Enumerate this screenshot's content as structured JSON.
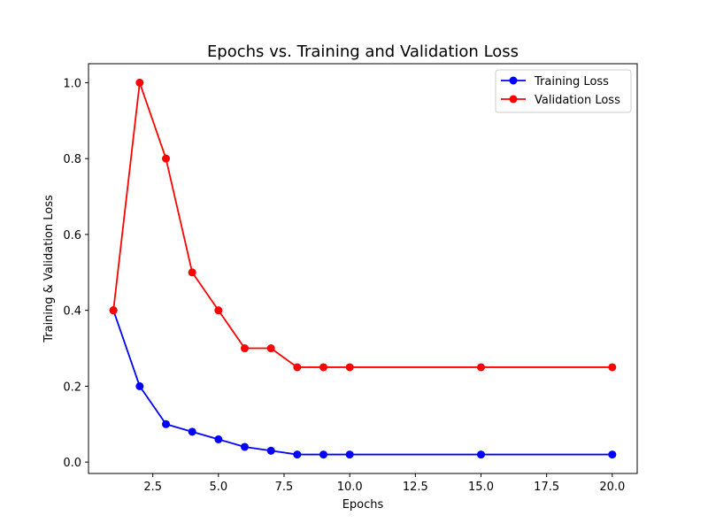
{
  "chart_data": {
    "type": "line",
    "title": "Epochs vs. Training and Validation Loss",
    "xlabel": "Epochs",
    "ylabel": "Training & Validation Loss",
    "xlim": [
      0.05,
      20.95
    ],
    "ylim": [
      -0.03,
      1.05
    ],
    "xticks": [
      2.5,
      5.0,
      7.5,
      10.0,
      12.5,
      15.0,
      17.5,
      20.0
    ],
    "xtick_labels": [
      "2.5",
      "5.0",
      "7.5",
      "10.0",
      "12.5",
      "15.0",
      "17.5",
      "20.0"
    ],
    "yticks": [
      0.0,
      0.2,
      0.4,
      0.6,
      0.8,
      1.0
    ],
    "ytick_labels": [
      "0.0",
      "0.2",
      "0.4",
      "0.6",
      "0.8",
      "1.0"
    ],
    "grid": false,
    "legend_position": "top-right",
    "x": [
      1,
      2,
      3,
      4,
      5,
      6,
      7,
      8,
      9,
      10,
      15,
      20
    ],
    "series": [
      {
        "name": "Training Loss",
        "color": "#0000ff",
        "marker": "circle",
        "values": [
          0.4,
          0.2,
          0.1,
          0.08,
          0.06,
          0.04,
          0.03,
          0.02,
          0.02,
          0.02,
          0.02,
          0.02
        ]
      },
      {
        "name": "Validation Loss",
        "color": "#ff0000",
        "marker": "circle",
        "values": [
          0.4,
          1.0,
          0.8,
          0.5,
          0.4,
          0.3,
          0.3,
          0.25,
          0.25,
          0.25,
          0.25,
          0.25
        ]
      }
    ]
  }
}
